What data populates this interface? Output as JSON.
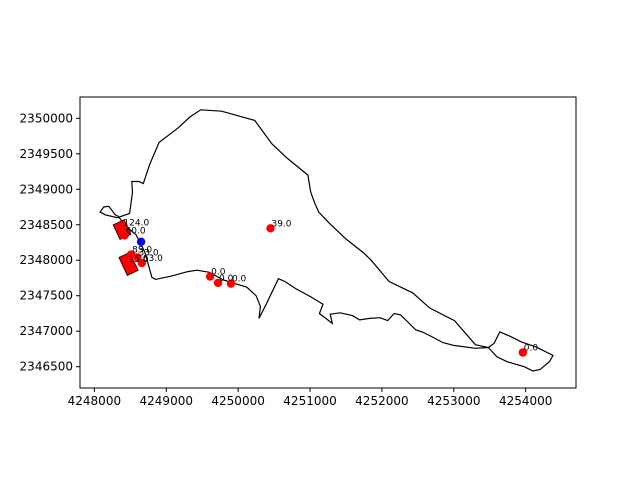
{
  "chart_data": {
    "type": "scatter",
    "title": "",
    "xlabel": "",
    "ylabel": "",
    "xlim": [
      4247800,
      4254700
    ],
    "ylim": [
      2346200,
      2350300
    ],
    "x_ticks": [
      {
        "value": 4248000,
        "label": "4248000"
      },
      {
        "value": 4249000,
        "label": "4249000"
      },
      {
        "value": 4250000,
        "label": "4250000"
      },
      {
        "value": 4251000,
        "label": "4251000"
      },
      {
        "value": 4252000,
        "label": "4252000"
      },
      {
        "value": 4253000,
        "label": "4253000"
      },
      {
        "value": 4254000,
        "label": "4254000"
      }
    ],
    "y_ticks": [
      {
        "value": 2346500,
        "label": "2346500"
      },
      {
        "value": 2347000,
        "label": "2347000"
      },
      {
        "value": 2347500,
        "label": "2347500"
      },
      {
        "value": 2348000,
        "label": "2348000"
      },
      {
        "value": 2348500,
        "label": "2348500"
      },
      {
        "value": 2349000,
        "label": "2349000"
      },
      {
        "value": 2349500,
        "label": "2349500"
      },
      {
        "value": 2350000,
        "label": "2350000"
      }
    ],
    "boundary_polygon": [
      [
        4248130,
        2348750
      ],
      [
        4248200,
        2348760
      ],
      [
        4248290,
        2348640
      ],
      [
        4248330,
        2348620
      ],
      [
        4248440,
        2348480
      ],
      [
        4248580,
        2348360
      ],
      [
        4248700,
        2348120
      ],
      [
        4248800,
        2347760
      ],
      [
        4248850,
        2347730
      ],
      [
        4249080,
        2347780
      ],
      [
        4249300,
        2347840
      ],
      [
        4249430,
        2347860
      ],
      [
        4249600,
        2347830
      ],
      [
        4249800,
        2347720
      ],
      [
        4249960,
        2347670
      ],
      [
        4250120,
        2347620
      ],
      [
        4250250,
        2347500
      ],
      [
        4250310,
        2347350
      ],
      [
        4250290,
        2347180
      ],
      [
        4250400,
        2347400
      ],
      [
        4250560,
        2347740
      ],
      [
        4250650,
        2347700
      ],
      [
        4250800,
        2347600
      ],
      [
        4251000,
        2347490
      ],
      [
        4251180,
        2347380
      ],
      [
        4251130,
        2347250
      ],
      [
        4251310,
        2347110
      ],
      [
        4251280,
        2347240
      ],
      [
        4251420,
        2347260
      ],
      [
        4251590,
        2347220
      ],
      [
        4251690,
        2347160
      ],
      [
        4251830,
        2347180
      ],
      [
        4251970,
        2347190
      ],
      [
        4252080,
        2347150
      ],
      [
        4252170,
        2347250
      ],
      [
        4252260,
        2347230
      ],
      [
        4252360,
        2347130
      ],
      [
        4252470,
        2347020
      ],
      [
        4252560,
        2346990
      ],
      [
        4252700,
        2346920
      ],
      [
        4252850,
        2346840
      ],
      [
        4253000,
        2346800
      ],
      [
        4253300,
        2346760
      ],
      [
        4253480,
        2346770
      ],
      [
        4253560,
        2346830
      ],
      [
        4253640,
        2346990
      ],
      [
        4253780,
        2346930
      ],
      [
        4253940,
        2346850
      ],
      [
        4254140,
        2346780
      ],
      [
        4254380,
        2346660
      ],
      [
        4254330,
        2346570
      ],
      [
        4254200,
        2346460
      ],
      [
        4254100,
        2346440
      ],
      [
        4253980,
        2346500
      ],
      [
        4253740,
        2346570
      ],
      [
        4253600,
        2346640
      ],
      [
        4253480,
        2346770
      ],
      [
        4253300,
        2346810
      ],
      [
        4253010,
        2347150
      ],
      [
        4252870,
        2347220
      ],
      [
        4252660,
        2347330
      ],
      [
        4252430,
        2347540
      ],
      [
        4252100,
        2347700
      ],
      [
        4251850,
        2348000
      ],
      [
        4251750,
        2348100
      ],
      [
        4251500,
        2348300
      ],
      [
        4251270,
        2348520
      ],
      [
        4251120,
        2348680
      ],
      [
        4251060,
        2348820
      ],
      [
        4251010,
        2348960
      ],
      [
        4250970,
        2349200
      ],
      [
        4250680,
        2349440
      ],
      [
        4250470,
        2349640
      ],
      [
        4250230,
        2349970
      ],
      [
        4249770,
        2350100
      ],
      [
        4249480,
        2350120
      ],
      [
        4249330,
        2350020
      ],
      [
        4249160,
        2349860
      ],
      [
        4248900,
        2349660
      ],
      [
        4248770,
        2349350
      ],
      [
        4248680,
        2349080
      ],
      [
        4248620,
        2349110
      ],
      [
        4248520,
        2349110
      ],
      [
        4248530,
        2348960
      ],
      [
        4248490,
        2348660
      ],
      [
        4248320,
        2348600
      ],
      [
        4248150,
        2348640
      ],
      [
        4248080,
        2348680
      ],
      [
        4248130,
        2348750
      ]
    ],
    "red_points": [
      {
        "x": 4248390,
        "y": 2348460,
        "label": "124.0"
      },
      {
        "x": 4248420,
        "y": 2348350,
        "label": "60.0"
      },
      {
        "x": 4248510,
        "y": 2348080,
        "label": "85.0"
      },
      {
        "x": 4248600,
        "y": 2348040,
        "label": "33.0"
      },
      {
        "x": 4248460,
        "y": 2347950,
        "label": "15.0"
      },
      {
        "x": 4248660,
        "y": 2347960,
        "label": "63.0"
      },
      {
        "x": 4249610,
        "y": 2347770,
        "label": "0.0"
      },
      {
        "x": 4249720,
        "y": 2347680,
        "label": "0.0"
      },
      {
        "x": 4249900,
        "y": 2347670,
        "label": "0.0"
      },
      {
        "x": 4250450,
        "y": 2348450,
        "label": "39.0"
      },
      {
        "x": 4253960,
        "y": 2346700,
        "label": "0.0"
      }
    ],
    "blue_points": [
      {
        "x": 4248650,
        "y": 2348260
      }
    ],
    "colors": {
      "points": "#ff0000",
      "highlight": "#0000ff",
      "boundary": "#000000"
    }
  }
}
